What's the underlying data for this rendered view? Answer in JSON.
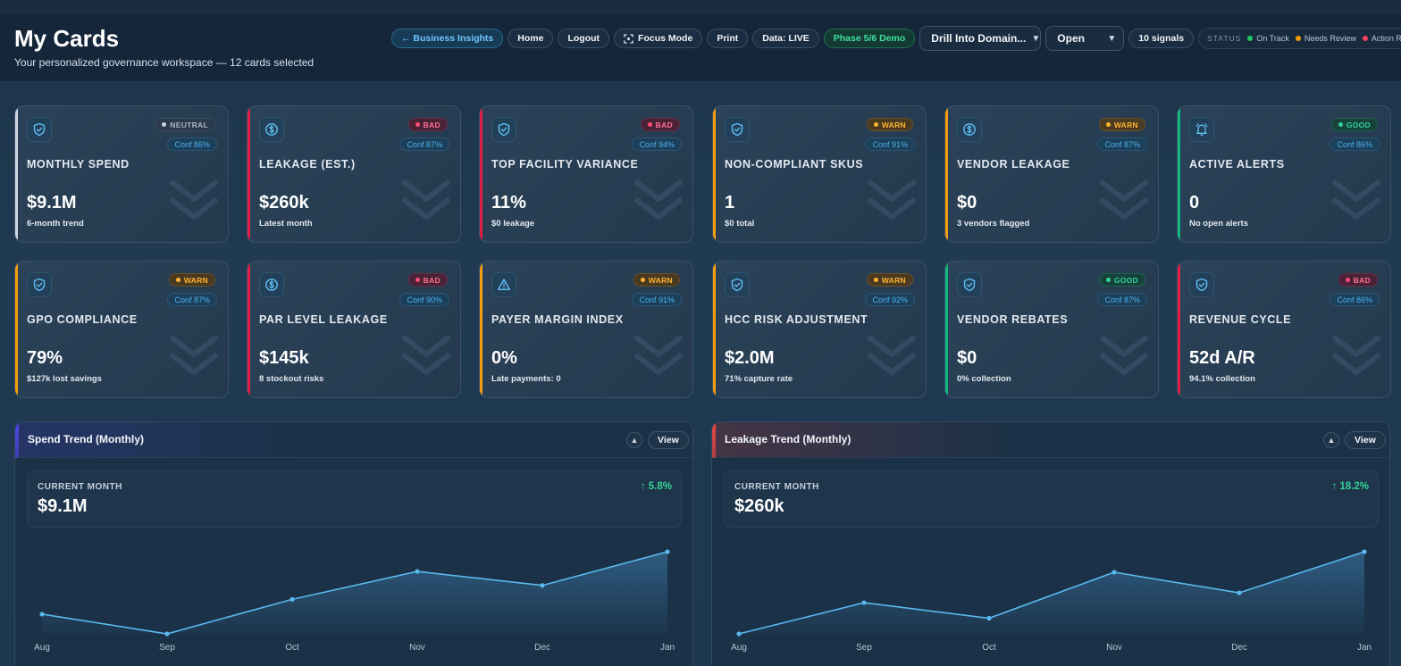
{
  "header": {
    "title": "My Cards",
    "subtitle": "Your personalized governance workspace — 12 cards selected"
  },
  "toolbar": {
    "back_label": "← Business Insights",
    "home_label": "Home",
    "logout_label": "Logout",
    "focus_label": "Focus Mode",
    "print_label": "Print",
    "data_label": "Data: LIVE",
    "phase_label": "Phase 5/6 Demo",
    "drill_select": "Drill Into Domain...",
    "open_select": "Open",
    "signals_label": "10 signals",
    "status_label": "STATUS",
    "status_legend": [
      {
        "label": "On Track",
        "color": "#22c55e"
      },
      {
        "label": "Needs Review",
        "color": "#f59e0b"
      },
      {
        "label": "Action Required",
        "color": "#f43f5e"
      }
    ]
  },
  "cards": [
    {
      "title": "MONTHLY SPEND",
      "value": "$9.1M",
      "sub": "6-month trend",
      "badge": "NEUTRAL",
      "status": "neutral",
      "conf": "Conf 86%",
      "icon": "shield-check-icon",
      "accent": "#cfd8e2"
    },
    {
      "title": "LEAKAGE (EST.)",
      "value": "$260k",
      "sub": "Latest month",
      "badge": "BAD",
      "status": "bad",
      "conf": "Conf 87%",
      "icon": "dollar-icon",
      "accent": "#e11d48"
    },
    {
      "title": "TOP FACILITY VARIANCE",
      "value": "11%",
      "sub": "$0 leakage",
      "badge": "BAD",
      "status": "bad",
      "conf": "Conf 94%",
      "icon": "shield-check-icon",
      "accent": "#e11d48"
    },
    {
      "title": "NON-COMPLIANT SKUS",
      "value": "1",
      "sub": "$0 total",
      "badge": "WARN",
      "status": "warn",
      "conf": "Conf 91%",
      "icon": "shield-check-icon",
      "accent": "#f59e0b"
    },
    {
      "title": "VENDOR LEAKAGE",
      "value": "$0",
      "sub": "3 vendors flagged",
      "badge": "WARN",
      "status": "warn",
      "conf": "Conf 87%",
      "icon": "dollar-icon",
      "accent": "#f59e0b"
    },
    {
      "title": "ACTIVE ALERTS",
      "value": "0",
      "sub": "No open alerts",
      "badge": "GOOD",
      "status": "good",
      "conf": "Conf 86%",
      "icon": "bell-icon",
      "accent": "#10b981"
    },
    {
      "title": "GPO COMPLIANCE",
      "value": "79%",
      "sub": "$127k lost savings",
      "badge": "WARN",
      "status": "warn",
      "conf": "Conf 87%",
      "icon": "shield-check-icon",
      "accent": "#f59e0b"
    },
    {
      "title": "PAR LEVEL LEAKAGE",
      "value": "$145k",
      "sub": "8 stockout risks",
      "badge": "BAD",
      "status": "bad",
      "conf": "Conf 90%",
      "icon": "dollar-icon",
      "accent": "#e11d48"
    },
    {
      "title": "PAYER MARGIN INDEX",
      "value": "0%",
      "sub": "Late payments: 0",
      "badge": "WARN",
      "status": "warn",
      "conf": "Conf 91%",
      "icon": "warning-icon",
      "accent": "#f59e0b"
    },
    {
      "title": "HCC RISK ADJUSTMENT",
      "value": "$2.0M",
      "sub": "71% capture rate",
      "badge": "WARN",
      "status": "warn",
      "conf": "Conf 92%",
      "icon": "shield-check-icon",
      "accent": "#f59e0b"
    },
    {
      "title": "VENDOR REBATES",
      "value": "$0",
      "sub": "0% collection",
      "badge": "GOOD",
      "status": "good",
      "conf": "Conf 87%",
      "icon": "shield-check-icon",
      "accent": "#10b981"
    },
    {
      "title": "REVENUE CYCLE",
      "value": "52d A/R",
      "sub": "94.1% collection",
      "badge": "BAD",
      "status": "bad",
      "conf": "Conf 86%",
      "icon": "shield-check-icon",
      "accent": "#e11d48"
    }
  ],
  "panels": [
    {
      "title": "Spend Trend (Monthly)",
      "view_label": "View",
      "current_label": "CURRENT MONTH",
      "current_value": "$9.1M",
      "delta": "↑ 5.8%",
      "accent": "#4f46e5",
      "chart_data": {
        "type": "area",
        "x": [
          "Aug",
          "Sep",
          "Oct",
          "Nov",
          "Dec",
          "Jan"
        ],
        "values": [
          0.24,
          0.0,
          0.42,
          0.76,
          0.59,
          1.0
        ],
        "grid": false,
        "line_color": "#5ab8ee"
      }
    },
    {
      "title": "Leakage Trend (Monthly)",
      "view_label": "View",
      "current_label": "CURRENT MONTH",
      "current_value": "$260k",
      "delta": "↑ 18.2%",
      "accent": "#ef4444",
      "chart_data": {
        "type": "area",
        "x": [
          "Aug",
          "Sep",
          "Oct",
          "Nov",
          "Dec",
          "Jan"
        ],
        "values": [
          0.0,
          0.38,
          0.19,
          0.75,
          0.5,
          1.0
        ],
        "grid": false,
        "line_color": "#5ab8ee"
      }
    }
  ]
}
